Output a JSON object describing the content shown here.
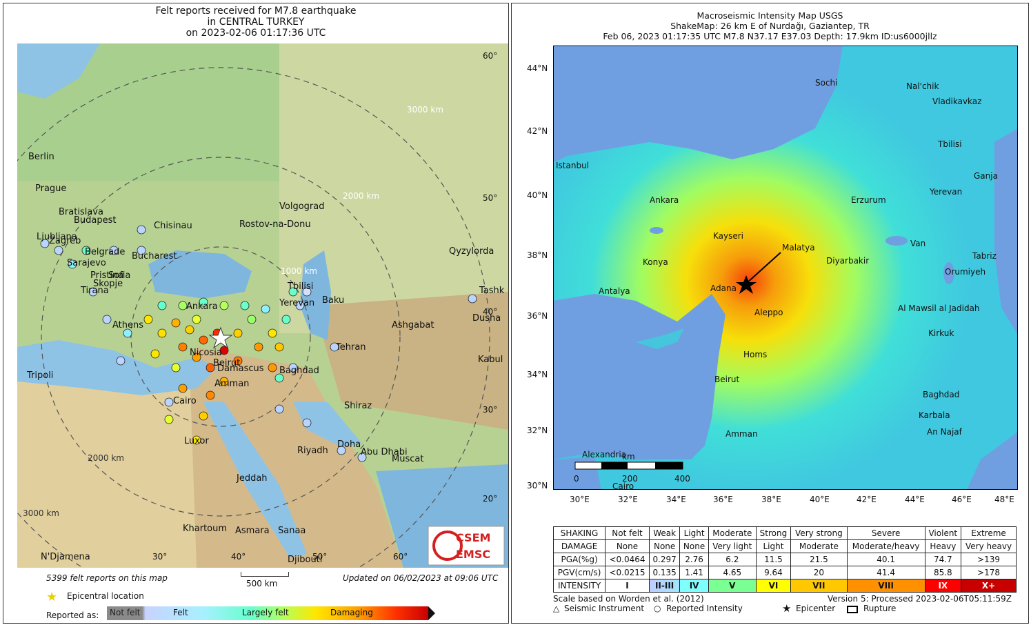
{
  "left": {
    "title_lines": [
      "Felt reports received for M7.8 earthquake",
      "in CENTRAL TURKEY",
      "on  2023-02-06 01:17:36 UTC"
    ],
    "distance_labels": [
      "3000 km",
      "2000 km",
      "1000 km",
      "2000 km",
      "3000 km"
    ],
    "lat_labels": [
      "60°",
      "50°",
      "40°",
      "30°",
      "20°"
    ],
    "lon_labels": [
      "30°",
      "40°",
      "50°",
      "60°"
    ],
    "cities": [
      "Berlin",
      "Prague",
      "Bratislava",
      "Budapest",
      "Chisinau",
      "Ljubljana",
      "Zagreb",
      "Belgrade",
      "Bucharest",
      "Sarajevo",
      "Pristina",
      "Sofia",
      "Skopje",
      "Tirana",
      "Volgograd",
      "Rostov-na-Donu",
      "Qyzylorda",
      "Tbilisi",
      "Yerevan",
      "Baku",
      "Ankara",
      "Athens",
      "Ashgabat",
      "Tashk",
      "Dusha",
      "Tehran",
      "Kabul",
      "Nicosia",
      "Beirut",
      "Damascus",
      "Baghdad",
      "Amman",
      "Tripoli",
      "Cairo",
      "Shiraz",
      "Luxor",
      "Doha",
      "Riyadh",
      "Abu Dhabi",
      "Muscat",
      "Jeddah",
      "Khartoum",
      "Asmara",
      "Sanaa",
      "N'Djamena",
      "Djibouti"
    ],
    "logo": "CSEM EMSC",
    "footer_count": "5399 felt reports on this map",
    "scale_label": "500 km",
    "updated": "Updated on 06/02/2023 at 09:06 UTC",
    "epicentral_label": "Epicentral location",
    "reported_as": "Reported as:",
    "legend_items": [
      "Not felt",
      "Felt",
      "Largely felt",
      "Damaging"
    ]
  },
  "right": {
    "title_lines": [
      "Macroseismic Intensity Map USGS",
      "ShakeMap: 26 km E of Nurdağı, Gaziantep, TR",
      "Feb 06, 2023 01:17:35 UTC M7.8 N37.17 E37.03 Depth: 17.9km ID:us6000jllz"
    ],
    "lat_labels": [
      "44°N",
      "42°N",
      "40°N",
      "38°N",
      "36°N",
      "34°N",
      "32°N",
      "30°N"
    ],
    "lon_labels": [
      "30°E",
      "32°E",
      "34°E",
      "36°E",
      "38°E",
      "40°E",
      "42°E",
      "44°E",
      "46°E",
      "48°E"
    ],
    "cities": [
      "Sochi",
      "Nal'chik",
      "Vladikavkaz",
      "Tbilisi",
      "Ganja",
      "Yerevan",
      "Istanbul",
      "Ankara",
      "Erzurum",
      "Kayseri",
      "Malatya",
      "Van",
      "Konya",
      "Diyarbakir",
      "Tabriz",
      "Orumiyeh",
      "Antalya",
      "Adana",
      "Aleppo",
      "Al Mawsil al Jadidah",
      "Kirkuk",
      "Homs",
      "Beirut",
      "Baghdad",
      "Karbala",
      "An Najaf",
      "Amman",
      "Alexandria",
      "Cairo"
    ],
    "scale_unit": "km",
    "scale_ticks": [
      "0",
      "200",
      "400"
    ],
    "legend_rows": [
      {
        "head": "SHAKING",
        "cells": [
          "Not felt",
          "Weak",
          "Light",
          "Moderate",
          "Strong",
          "Very strong",
          "Severe",
          "Violent",
          "Extreme"
        ]
      },
      {
        "head": "DAMAGE",
        "cells": [
          "None",
          "None",
          "None",
          "Very light",
          "Light",
          "Moderate",
          "Moderate/heavy",
          "Heavy",
          "Very heavy"
        ]
      },
      {
        "head": "PGA(%g)",
        "cells": [
          "<0.0464",
          "0.297",
          "2.76",
          "6.2",
          "11.5",
          "21.5",
          "40.1",
          "74.7",
          ">139"
        ]
      },
      {
        "head": "PGV(cm/s)",
        "cells": [
          "<0.0215",
          "0.135",
          "1.41",
          "4.65",
          "9.64",
          "20",
          "41.4",
          "85.8",
          ">178"
        ]
      },
      {
        "head": "INTENSITY",
        "cells": [
          "I",
          "II-III",
          "IV",
          "V",
          "VI",
          "VII",
          "VIII",
          "IX",
          "X+"
        ]
      }
    ],
    "intensity_colors": [
      "#ffffff",
      "#bfccff",
      "#a0e6ff",
      "#80ffff",
      "#7aff93",
      "#ffff00",
      "#ffc800",
      "#ff9100",
      "#ff0000",
      "#c80000"
    ],
    "scale_note": "Scale based on Worden et al. (2012)",
    "version": "Version 5: Processed 2023-02-06T05:11:59Z",
    "legend_bottom": [
      "Seismic Instrument",
      "Reported Intensity",
      "Epicenter",
      "Rupture"
    ]
  }
}
